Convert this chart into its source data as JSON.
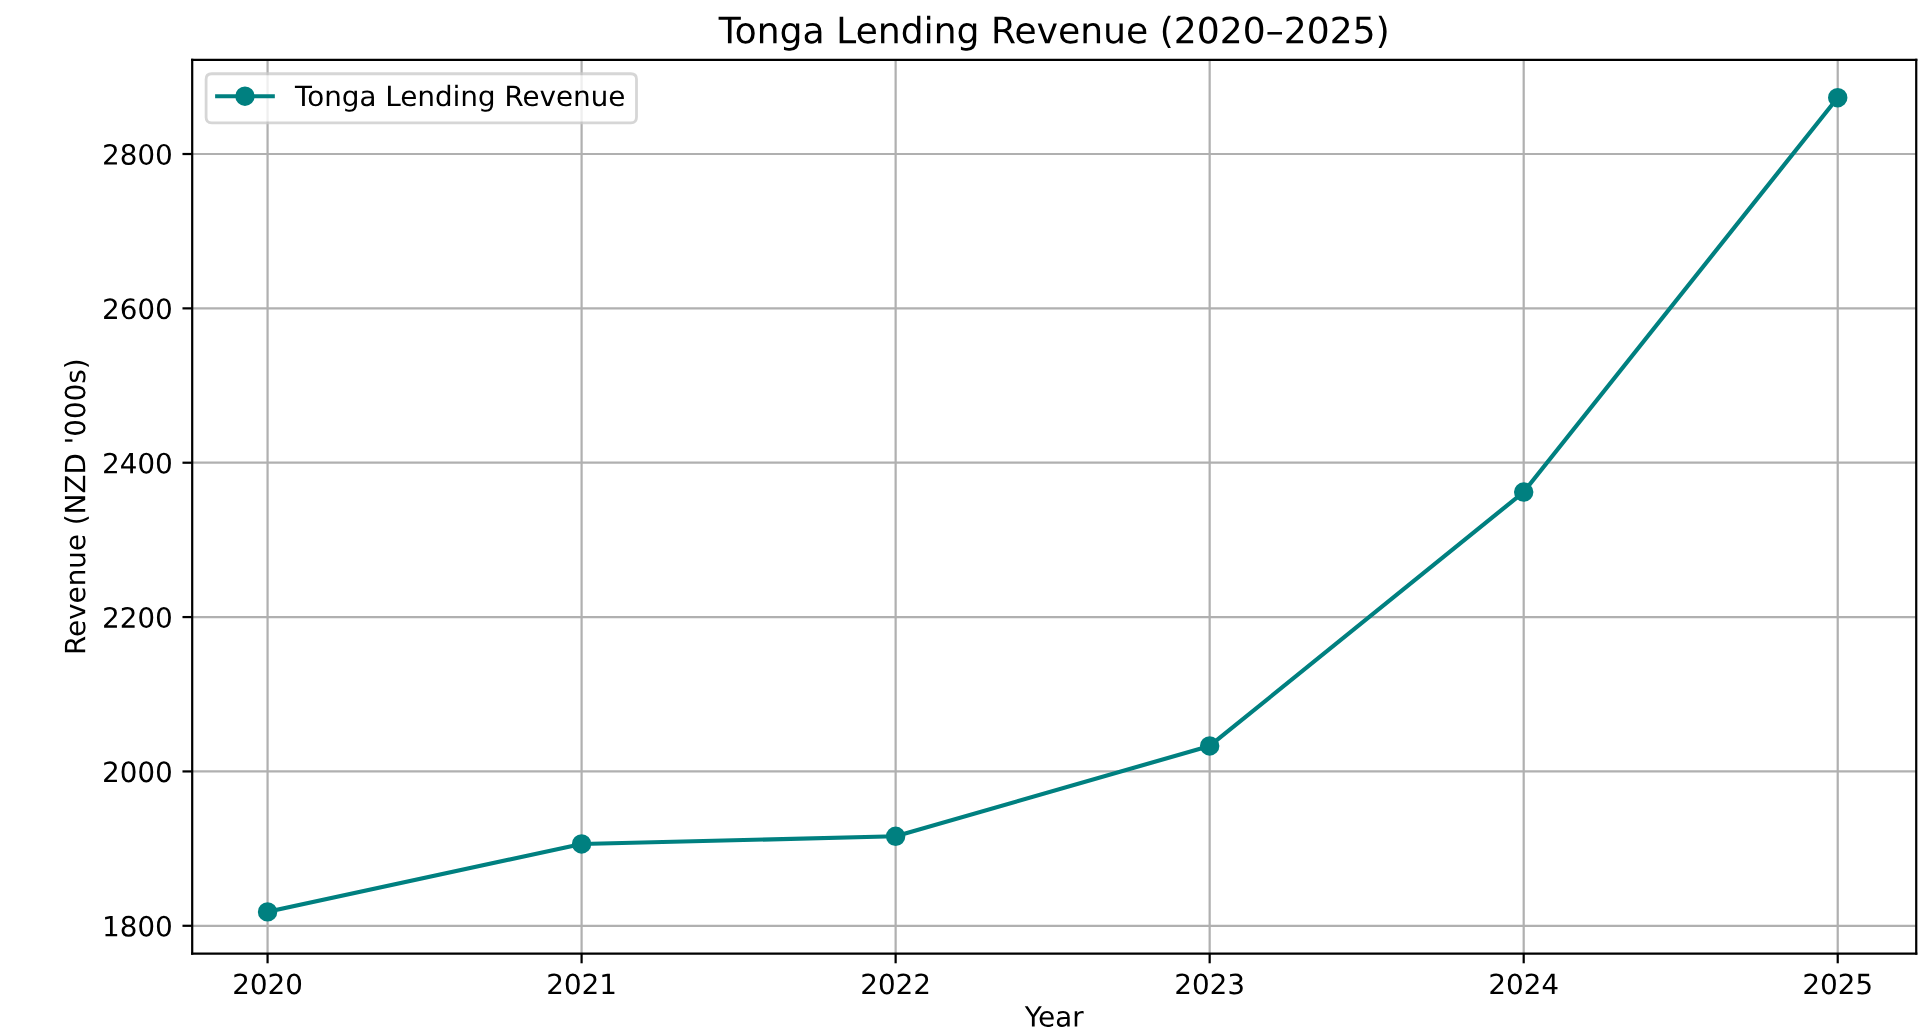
{
  "chart_data": {
    "type": "line",
    "title": "Tonga Lending Revenue (2020–2025)",
    "xlabel": "Year",
    "ylabel": "Revenue (NZD '000s)",
    "x": [
      2020,
      2021,
      2022,
      2023,
      2024,
      2025
    ],
    "series": [
      {
        "name": "Tonga Lending Revenue",
        "color": "#008080",
        "values": [
          1818,
          1906,
          1916,
          2033,
          2362,
          2873
        ]
      }
    ],
    "xlim": [
      2019.76,
      2025.25
    ],
    "ylim": [
      1764,
      2922
    ],
    "xticks": [
      2020,
      2021,
      2022,
      2023,
      2024,
      2025
    ],
    "yticks": [
      1800,
      2000,
      2200,
      2400,
      2600,
      2800
    ],
    "grid": true,
    "legend": "top left",
    "marker": "circle",
    "line_style": "solid"
  }
}
